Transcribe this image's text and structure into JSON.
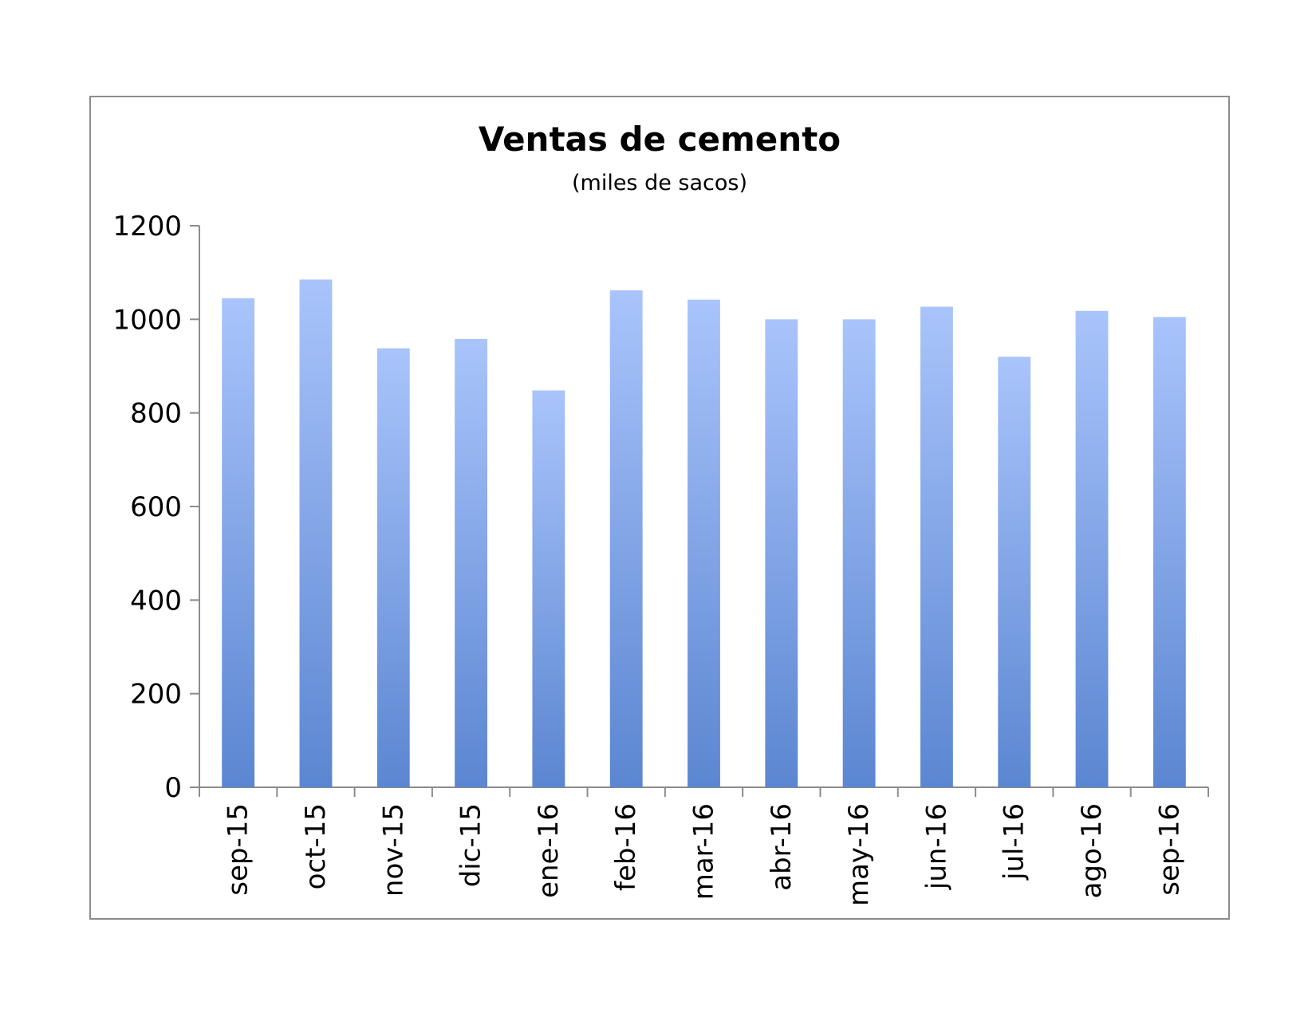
{
  "chart_data": {
    "type": "bar",
    "title": "Ventas de cemento",
    "subtitle": "(miles de sacos)",
    "xlabel": "",
    "ylabel": "",
    "categories": [
      "sep-15",
      "oct-15",
      "nov-15",
      "dic-15",
      "ene-16",
      "feb-16",
      "mar-16",
      "abr-16",
      "may-16",
      "jun-16",
      "jul-16",
      "ago-16",
      "sep-16"
    ],
    "values": [
      1045,
      1085,
      938,
      958,
      848,
      1062,
      1042,
      1000,
      1000,
      1027,
      920,
      1018,
      1005
    ],
    "ylim": [
      0,
      1200
    ],
    "yticks": [
      0,
      200,
      400,
      600,
      800,
      1000,
      1200
    ],
    "grid": false,
    "legend": "none",
    "colors": {
      "bar_top": "#a9c4fb",
      "bar_bottom": "#5b86d1",
      "axis": "#8c8c8c",
      "frame": "#8c8c8c"
    }
  }
}
